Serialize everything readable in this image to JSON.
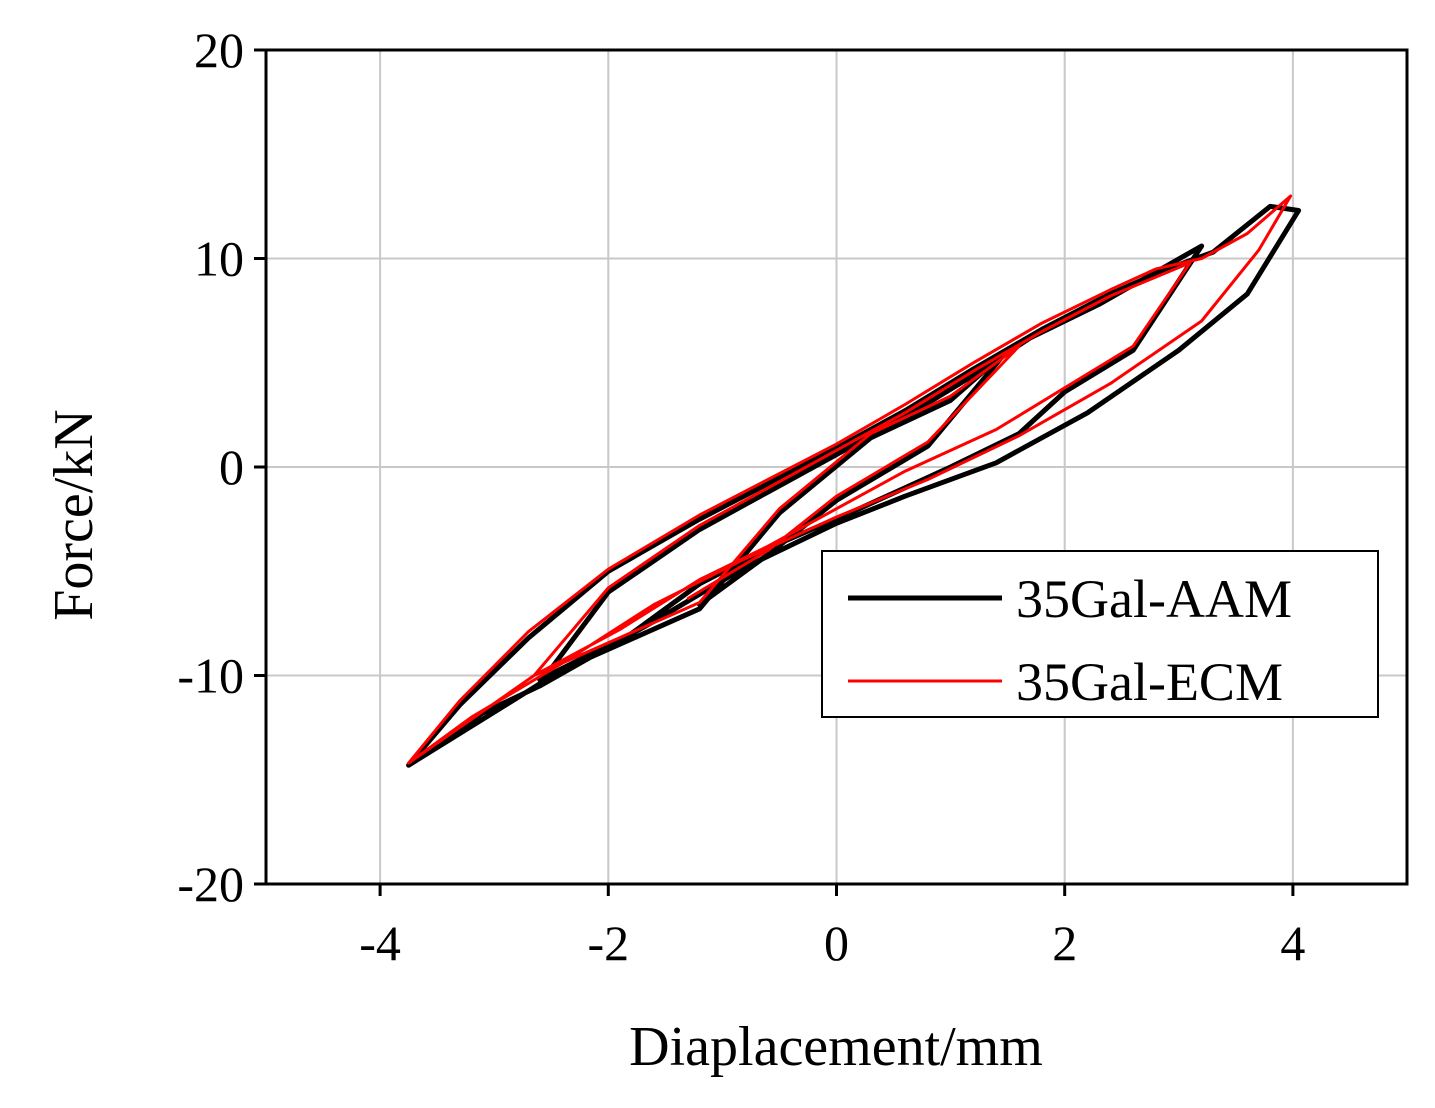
{
  "chart_data": {
    "type": "line",
    "title": "",
    "xlabel": "Diaplacement/mm",
    "ylabel": "Force/kN",
    "xlim": [
      -5,
      5
    ],
    "ylim": [
      -20,
      20
    ],
    "xticks": [
      -4,
      -2,
      0,
      2,
      4
    ],
    "yticks": [
      -20,
      -10,
      0,
      10,
      20
    ],
    "xtick_labels": [
      "-4",
      "-2",
      "0",
      "2",
      "4"
    ],
    "ytick_labels": [
      "-20",
      "-10",
      "0",
      "10",
      "20"
    ],
    "grid": true,
    "legend_position": "bottom-right",
    "series": [
      {
        "name": "35Gal-AAM",
        "color": "#000000",
        "x": [
          -3.75,
          -3.3,
          -2.7,
          -2.0,
          -1.2,
          -0.6,
          0.0,
          0.6,
          1.2,
          1.8,
          2.4,
          2.9,
          3.3,
          3.8,
          4.05,
          3.6,
          3.0,
          2.2,
          1.4,
          0.6,
          0.0,
          -0.8,
          -1.6,
          -2.6,
          -3.1,
          -3.75,
          -2.6,
          -2.0,
          -1.2,
          -0.6,
          0.0,
          0.6,
          1.2,
          1.7,
          2.3,
          3.2,
          2.6,
          2.0,
          1.6,
          1.0,
          0.2,
          -0.6,
          -1.2,
          -1.8,
          -2.6,
          -1.2,
          -0.5,
          0.3,
          1.0,
          1.5,
          0.8,
          0.0,
          -0.6,
          -1.2
        ],
        "y": [
          -14.3,
          -11.4,
          -8.2,
          -5.0,
          -2.5,
          -0.8,
          0.9,
          2.7,
          4.7,
          6.6,
          8.3,
          9.5,
          10.3,
          12.5,
          12.3,
          8.3,
          5.6,
          2.6,
          0.2,
          -1.4,
          -2.7,
          -4.8,
          -7.4,
          -10.5,
          -11.8,
          -14.3,
          -10.4,
          -6.0,
          -3.0,
          -1.2,
          0.6,
          2.4,
          4.4,
          6.2,
          7.8,
          10.6,
          5.6,
          3.6,
          1.6,
          0.0,
          -2.0,
          -3.9,
          -5.6,
          -8.0,
          -10.2,
          -6.8,
          -2.2,
          1.4,
          3.2,
          5.6,
          1.0,
          -1.6,
          -4.2,
          -6.6
        ]
      },
      {
        "name": "35Gal-ECM",
        "color": "#ff0000",
        "x": [
          -3.75,
          -3.3,
          -2.7,
          -2.0,
          -1.2,
          -0.6,
          0.0,
          0.6,
          1.2,
          1.8,
          2.4,
          2.8,
          3.2,
          3.6,
          3.98,
          3.7,
          3.2,
          2.4,
          1.6,
          0.8,
          0.0,
          -0.8,
          -1.6,
          -2.4,
          -3.2,
          -3.75,
          -2.65,
          -2.0,
          -1.2,
          -0.6,
          0.0,
          0.6,
          1.2,
          1.8,
          2.4,
          3.1,
          2.6,
          2.0,
          1.4,
          0.6,
          0.0,
          -0.6,
          -1.2,
          -1.9,
          -2.65,
          -1.2,
          -0.5,
          0.3,
          1.0,
          1.6,
          0.8,
          0.0,
          -0.6,
          -1.3
        ],
        "y": [
          -14.2,
          -11.2,
          -7.9,
          -4.9,
          -2.3,
          -0.6,
          1.1,
          3.0,
          5.0,
          6.9,
          8.5,
          9.5,
          10.0,
          11.2,
          13.0,
          10.4,
          7.0,
          4.0,
          1.5,
          -0.6,
          -2.4,
          -4.4,
          -6.6,
          -9.4,
          -12.0,
          -14.2,
          -10.0,
          -5.8,
          -2.8,
          -1.0,
          0.8,
          2.6,
          4.6,
          6.5,
          8.2,
          9.8,
          5.8,
          3.8,
          1.8,
          -0.2,
          -2.0,
          -3.8,
          -5.4,
          -7.8,
          -10.0,
          -6.5,
          -2.0,
          1.6,
          3.4,
          5.8,
          1.2,
          -1.4,
          -4.0,
          -6.3
        ]
      }
    ]
  }
}
